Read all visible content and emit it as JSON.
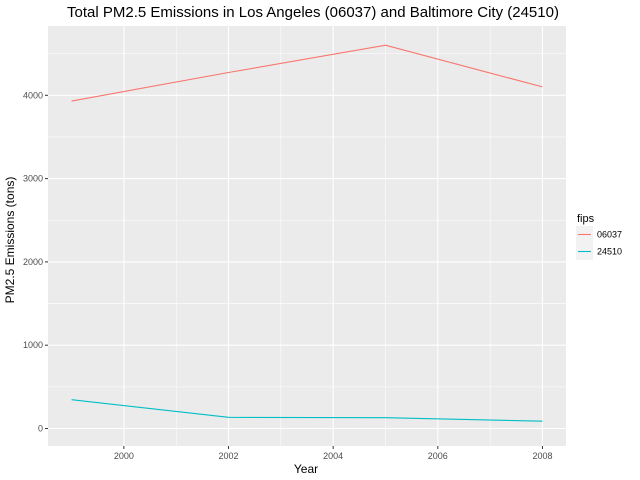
{
  "chart_data": {
    "type": "line",
    "title": "Total PM2.5 Emissions in Los Angeles (06037) and Baltimore City (24510)",
    "xlabel": "Year",
    "ylabel": "PM2.5 Emissions (tons)",
    "x": [
      1999,
      2002,
      2005,
      2008
    ],
    "xlim": [
      1998.55,
      2008.45
    ],
    "ylim": [
      -210,
      4832
    ],
    "x_ticks": [
      2000,
      2002,
      2004,
      2006,
      2008
    ],
    "y_ticks": [
      0,
      1000,
      2000,
      3000,
      4000
    ],
    "grid": true,
    "legend": {
      "title": "fips",
      "placement": "right"
    },
    "series": [
      {
        "name": "06037",
        "color": "#F8766D",
        "values": [
          3931,
          4274,
          4601,
          4101
        ]
      },
      {
        "name": "24510",
        "color": "#00BFC4",
        "values": [
          346,
          134,
          130,
          88
        ]
      }
    ]
  }
}
